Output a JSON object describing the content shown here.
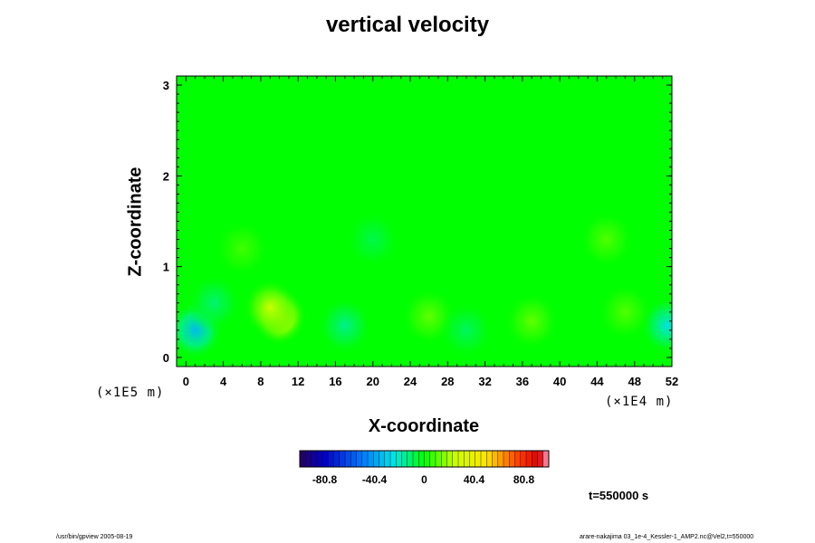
{
  "chart_data": {
    "type": "heatmap",
    "title": "vertical velocity",
    "xlabel": "X-coordinate",
    "ylabel": "Z-coordinate",
    "x_unit": "(×1E4 m)",
    "y_unit": "(×1E5 m)",
    "xlim": [
      -1,
      52
    ],
    "ylim": [
      -0.1,
      3.1
    ],
    "x_ticks": [
      0,
      4,
      8,
      12,
      16,
      20,
      24,
      28,
      32,
      36,
      40,
      44,
      48,
      52
    ],
    "y_ticks": [
      0,
      1,
      2,
      3
    ],
    "colorbar": {
      "ticks": [
        -80.8,
        -40.4,
        0,
        40.4,
        80.8
      ],
      "tick_labels": [
        "-80.8",
        "-40.4",
        "0",
        "40.4",
        "80.8"
      ],
      "range": [
        -101,
        101
      ]
    },
    "field": {
      "background": 0,
      "features": [
        {
          "x": 10,
          "z": 0.45,
          "value": 42
        },
        {
          "x": 9,
          "z": 0.55,
          "value": 25
        },
        {
          "x": 26,
          "z": 0.45,
          "value": 12
        },
        {
          "x": 37,
          "z": 0.4,
          "value": 12
        },
        {
          "x": 1,
          "z": 0.3,
          "value": -35
        },
        {
          "x": 51.5,
          "z": 0.35,
          "value": -25
        },
        {
          "x": 17,
          "z": 0.35,
          "value": -15
        },
        {
          "x": 30,
          "z": 0.3,
          "value": -10
        },
        {
          "x": 3,
          "z": 0.6,
          "value": -12
        },
        {
          "x": 45,
          "z": 1.3,
          "value": 10
        },
        {
          "x": 47,
          "z": 0.5,
          "value": 10
        },
        {
          "x": 6,
          "z": 1.2,
          "value": 8
        },
        {
          "x": 20,
          "z": 1.3,
          "value": -8
        }
      ]
    }
  },
  "labels": {
    "time": "t=550000 s",
    "footer_left": "/usr/bin/gpview 2005-08-19",
    "footer_right": "arare-nakajima 03_1e-4_Kessler-1_AMP2.nc@Vel2,t=550000"
  }
}
